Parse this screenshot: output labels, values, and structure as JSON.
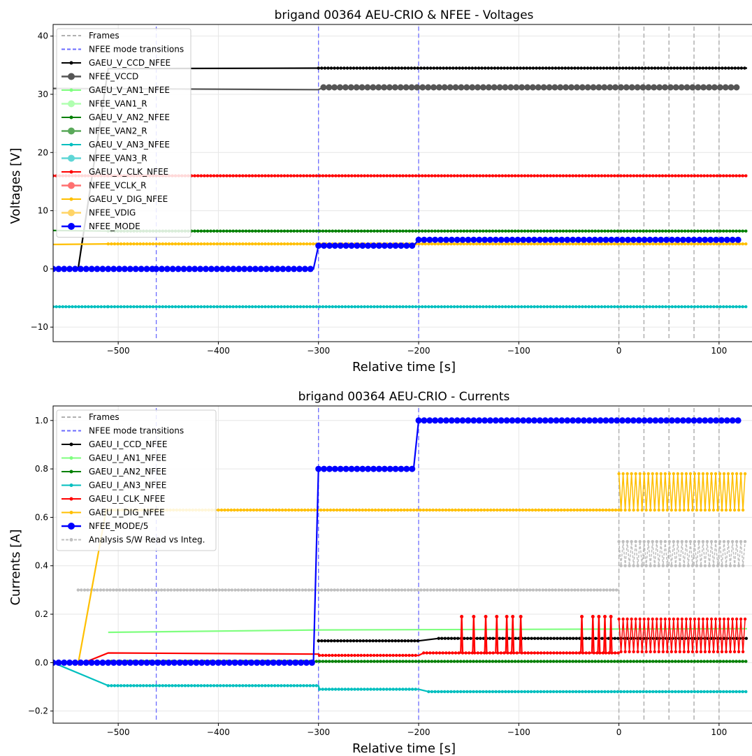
{
  "chart_data": [
    {
      "type": "line",
      "title": "brigand 00364 AEU-CRIO & NFEE - Voltages",
      "xlabel": "Relative time [s]",
      "ylabel": "Voltages [V]",
      "xlim": [
        -565,
        135
      ],
      "ylim": [
        -12.5,
        42
      ],
      "xticks": [
        -500,
        -400,
        -300,
        -200,
        -100,
        0,
        100
      ],
      "yticks": [
        -10,
        0,
        10,
        20,
        30,
        40
      ],
      "grid": true,
      "legend_position": "top-left",
      "frames": [
        0,
        25,
        50,
        75,
        100
      ],
      "mode_transitions": [
        -462,
        -300,
        -200
      ],
      "legend": [
        {
          "name": "Frames",
          "color": "#b0b0b0",
          "style": "dash"
        },
        {
          "name": "NFEE mode transitions",
          "color": "#6b6bff",
          "style": "dash"
        },
        {
          "name": "GAEU_V_CCD_NFEE",
          "color": "#000000",
          "style": "small"
        },
        {
          "name": "NFEE_VCCD",
          "color": "#555555",
          "style": "big"
        },
        {
          "name": "GAEU_V_AN1_NFEE",
          "color": "#7fff7f",
          "style": "small"
        },
        {
          "name": "NFEE_VAN1_R",
          "color": "#b0ffb0",
          "style": "big"
        },
        {
          "name": "GAEU_V_AN2_NFEE",
          "color": "#008000",
          "style": "small"
        },
        {
          "name": "NFEE_VAN2_R",
          "color": "#5aa95a",
          "style": "big"
        },
        {
          "name": "GAEU_V_AN3_NFEE",
          "color": "#00bfbf",
          "style": "small"
        },
        {
          "name": "NFEE_VAN3_R",
          "color": "#5fd6d6",
          "style": "big"
        },
        {
          "name": "GAEU_V_CLK_NFEE",
          "color": "#ff0000",
          "style": "small"
        },
        {
          "name": "NFEE_VCLK_R",
          "color": "#ff7070",
          "style": "big"
        },
        {
          "name": "GAEU_V_DIG_NFEE",
          "color": "#ffbf00",
          "style": "small"
        },
        {
          "name": "NFEE_VDIG",
          "color": "#ffd466",
          "style": "big"
        },
        {
          "name": "NFEE_MODE",
          "color": "#0000ff",
          "style": "big"
        }
      ],
      "series": [
        {
          "name": "GAEU_V_CCD_NFEE",
          "color": "#000000",
          "marker": "small",
          "steps": [
            [
              -540,
              0
            ],
            [
              -510,
              34.4
            ],
            [
              -300,
              34.5
            ],
            [
              128,
              34.5
            ]
          ]
        },
        {
          "name": "NFEE_VCCD",
          "color": "#555555",
          "marker": "big",
          "steps": [
            [
              -565,
              31
            ],
            [
              -300,
              30.8
            ],
            [
              -295,
              31.2
            ],
            [
              120,
              31.2
            ]
          ]
        },
        {
          "name": "GAEU_V_AN2_NFEE",
          "color": "#008000",
          "marker": "small",
          "steps": [
            [
              -565,
              6.6
            ],
            [
              -510,
              6.5
            ],
            [
              128,
              6.5
            ]
          ]
        },
        {
          "name": "GAEU_V_DIG_NFEE",
          "color": "#ffbf00",
          "marker": "small",
          "steps": [
            [
              -565,
              4.2
            ],
            [
              -510,
              4.3
            ],
            [
              128,
              4.3
            ]
          ]
        },
        {
          "name": "GAEU_V_CLK_NFEE",
          "color": "#ff0000",
          "marker": "small",
          "steps": [
            [
              -565,
              16
            ],
            [
              -510,
              16
            ],
            [
              128,
              16
            ]
          ]
        },
        {
          "name": "GAEU_V_AN3_NFEE",
          "color": "#00bfbf",
          "marker": "small",
          "steps": [
            [
              -565,
              -6.5
            ],
            [
              -510,
              -6.5
            ],
            [
              128,
              -6.5
            ]
          ]
        },
        {
          "name": "NFEE_MODE",
          "color": "#0000ff",
          "marker": "big",
          "steps": [
            [
              -565,
              0
            ],
            [
              -462,
              0
            ],
            [
              -305,
              0
            ],
            [
              -300,
              4
            ],
            [
              -205,
              4
            ],
            [
              -200,
              5
            ],
            [
              120,
              5
            ]
          ]
        }
      ]
    },
    {
      "type": "line",
      "title": "brigand 00364 AEU-CRIO - Currents",
      "xlabel": "Relative time [s]",
      "ylabel": "Currents [A]",
      "xlim": [
        -565,
        135
      ],
      "ylim": [
        -0.25,
        1.06
      ],
      "xticks": [
        -500,
        -400,
        -300,
        -200,
        -100,
        0,
        100
      ],
      "yticks": [
        -0.2,
        0.0,
        0.2,
        0.4,
        0.6,
        0.8,
        1.0
      ],
      "grid": true,
      "legend_position": "top-left",
      "frames": [
        0,
        25,
        50,
        75,
        100
      ],
      "mode_transitions": [
        -462,
        -300,
        -200
      ],
      "legend": [
        {
          "name": "Frames",
          "color": "#b0b0b0",
          "style": "dash"
        },
        {
          "name": "NFEE mode transitions",
          "color": "#6b6bff",
          "style": "dash"
        },
        {
          "name": "GAEU_I_CCD_NFEE",
          "color": "#000000",
          "style": "small"
        },
        {
          "name": "GAEU_I_AN1_NFEE",
          "color": "#7fff7f",
          "style": "small"
        },
        {
          "name": "GAEU_I_AN2_NFEE",
          "color": "#008000",
          "style": "small"
        },
        {
          "name": "GAEU_I_AN3_NFEE",
          "color": "#00bfbf",
          "style": "small"
        },
        {
          "name": "GAEU_I_CLK_NFEE",
          "color": "#ff0000",
          "style": "small"
        },
        {
          "name": "GAEU_I_DIG_NFEE",
          "color": "#ffbf00",
          "style": "small"
        },
        {
          "name": "NFEE_MODE/5",
          "color": "#0000ff",
          "style": "big"
        },
        {
          "name": "Analysis S/W Read vs Integ.",
          "color": "#bfbfbf",
          "style": "dashdot"
        }
      ],
      "series": [
        {
          "name": "Analysis S/W Read vs Integ.",
          "color": "#bfbfbf",
          "marker": "small",
          "steps": [
            [
              -540,
              0.3
            ],
            [
              0,
              0.3
            ]
          ],
          "oscillate": {
            "from": 0,
            "to": 128,
            "low": 0.4,
            "high": 0.5
          }
        },
        {
          "name": "GAEU_I_AN1_NFEE",
          "color": "#7fff7f",
          "marker": "small",
          "steps": [
            [
              -510,
              0.125
            ],
            [
              -300,
              0.135
            ],
            [
              128,
              0.14
            ]
          ]
        },
        {
          "name": "GAEU_I_DIG_NFEE",
          "color": "#ffbf00",
          "marker": "small",
          "steps": [
            [
              -540,
              -0.005
            ],
            [
              -512,
              0.63
            ],
            [
              0,
              0.63
            ]
          ],
          "oscillate": {
            "from": 0,
            "to": 128,
            "low": 0.63,
            "high": 0.78
          }
        },
        {
          "name": "GAEU_I_CCD_NFEE",
          "color": "#000000",
          "marker": "small",
          "steps": [
            [
              -300,
              0.09
            ],
            [
              -200,
              0.09
            ],
            [
              -180,
              0.1
            ],
            [
              128,
              0.1
            ]
          ]
        },
        {
          "name": "GAEU_I_CLK_NFEE",
          "color": "#ff0000",
          "marker": "small",
          "steps": [
            [
              -540,
              -0.01
            ],
            [
              -510,
              0.04
            ],
            [
              -300,
              0.035
            ],
            [
              -299,
              0.03
            ],
            [
              -200,
              0.03
            ],
            [
              -195,
              0.04
            ],
            [
              0,
              0.04
            ]
          ],
          "spikes": [
            -157,
            -145,
            -133,
            -122,
            -112,
            -106,
            -98,
            -37,
            -26,
            -20,
            -14,
            -8
          ],
          "spike_high": 0.19,
          "oscillate": {
            "from": 0,
            "to": 128,
            "low": 0.045,
            "high": 0.18
          }
        },
        {
          "name": "GAEU_I_AN2_NFEE",
          "color": "#008000",
          "marker": "small",
          "steps": [
            [
              -540,
              0.0
            ],
            [
              -510,
              0.005
            ],
            [
              128,
              0.005
            ]
          ]
        },
        {
          "name": "GAEU_I_AN3_NFEE",
          "color": "#00bfbf",
          "marker": "small",
          "steps": [
            [
              -565,
              0.0
            ],
            [
              -510,
              -0.095
            ],
            [
              -300,
              -0.095
            ],
            [
              -299,
              -0.11
            ],
            [
              -200,
              -0.11
            ],
            [
              -190,
              -0.12
            ],
            [
              128,
              -0.12
            ]
          ]
        },
        {
          "name": "NFEE_MODE/5",
          "color": "#0000ff",
          "marker": "big",
          "steps": [
            [
              -565,
              0.0
            ],
            [
              -305,
              0.0
            ],
            [
              -300,
              0.8
            ],
            [
              -205,
              0.8
            ],
            [
              -200,
              1.0
            ],
            [
              120,
              1.0
            ]
          ]
        }
      ]
    }
  ]
}
